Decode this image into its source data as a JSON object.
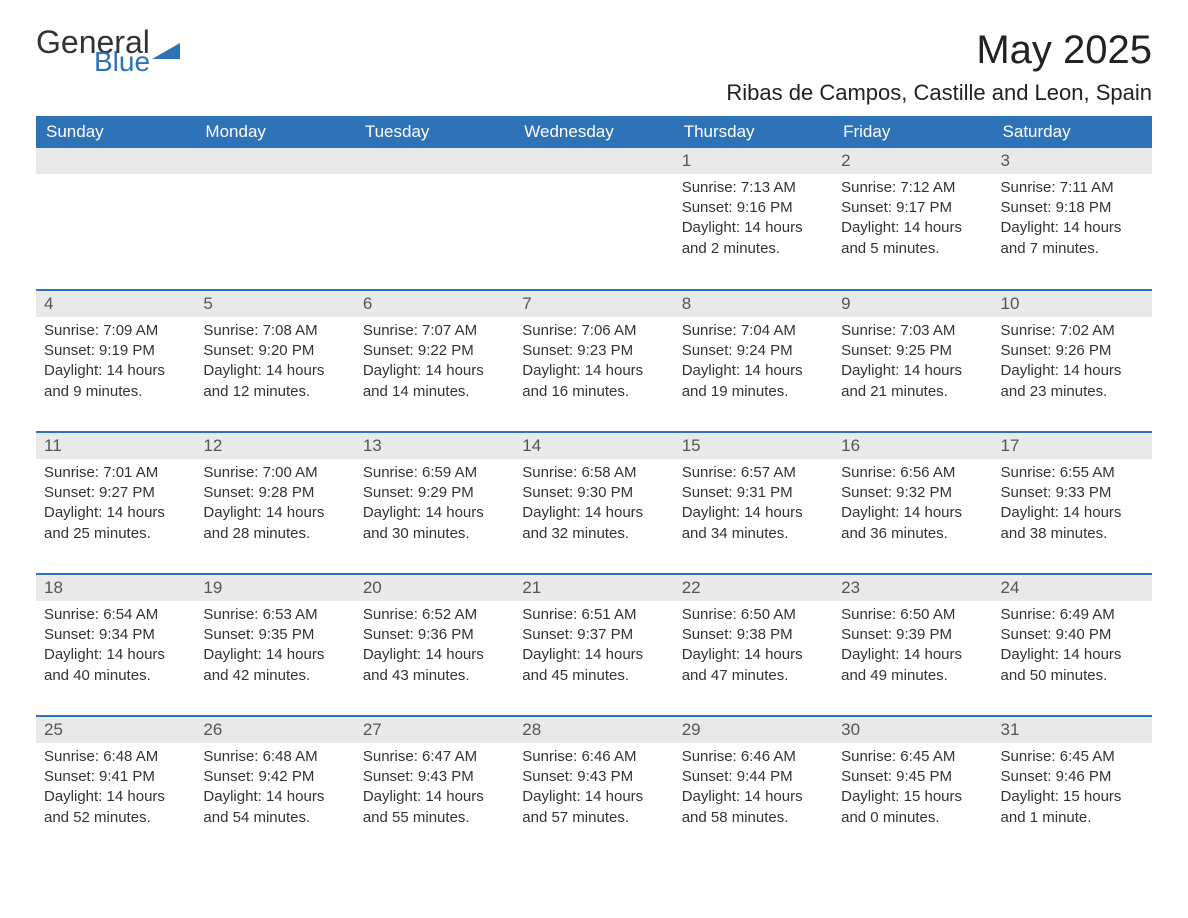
{
  "logo": {
    "general": "General",
    "blue": "Blue"
  },
  "title": "May 2025",
  "subtitle": "Ribas de Campos, Castille and Leon, Spain",
  "colors": {
    "header_bg": "#2e73b8",
    "header_text": "#ffffff",
    "daynum_bg": "#e9e9e9",
    "row_divider": "#2e73b8",
    "text": "#333333",
    "logo_blue": "#2e73b8"
  },
  "weekdays": [
    "Sunday",
    "Monday",
    "Tuesday",
    "Wednesday",
    "Thursday",
    "Friday",
    "Saturday"
  ],
  "weeks": [
    [
      null,
      null,
      null,
      null,
      {
        "day": "1",
        "sunrise": "Sunrise: 7:13 AM",
        "sunset": "Sunset: 9:16 PM",
        "daylight": "Daylight: 14 hours and 2 minutes."
      },
      {
        "day": "2",
        "sunrise": "Sunrise: 7:12 AM",
        "sunset": "Sunset: 9:17 PM",
        "daylight": "Daylight: 14 hours and 5 minutes."
      },
      {
        "day": "3",
        "sunrise": "Sunrise: 7:11 AM",
        "sunset": "Sunset: 9:18 PM",
        "daylight": "Daylight: 14 hours and 7 minutes."
      }
    ],
    [
      {
        "day": "4",
        "sunrise": "Sunrise: 7:09 AM",
        "sunset": "Sunset: 9:19 PM",
        "daylight": "Daylight: 14 hours and 9 minutes."
      },
      {
        "day": "5",
        "sunrise": "Sunrise: 7:08 AM",
        "sunset": "Sunset: 9:20 PM",
        "daylight": "Daylight: 14 hours and 12 minutes."
      },
      {
        "day": "6",
        "sunrise": "Sunrise: 7:07 AM",
        "sunset": "Sunset: 9:22 PM",
        "daylight": "Daylight: 14 hours and 14 minutes."
      },
      {
        "day": "7",
        "sunrise": "Sunrise: 7:06 AM",
        "sunset": "Sunset: 9:23 PM",
        "daylight": "Daylight: 14 hours and 16 minutes."
      },
      {
        "day": "8",
        "sunrise": "Sunrise: 7:04 AM",
        "sunset": "Sunset: 9:24 PM",
        "daylight": "Daylight: 14 hours and 19 minutes."
      },
      {
        "day": "9",
        "sunrise": "Sunrise: 7:03 AM",
        "sunset": "Sunset: 9:25 PM",
        "daylight": "Daylight: 14 hours and 21 minutes."
      },
      {
        "day": "10",
        "sunrise": "Sunrise: 7:02 AM",
        "sunset": "Sunset: 9:26 PM",
        "daylight": "Daylight: 14 hours and 23 minutes."
      }
    ],
    [
      {
        "day": "11",
        "sunrise": "Sunrise: 7:01 AM",
        "sunset": "Sunset: 9:27 PM",
        "daylight": "Daylight: 14 hours and 25 minutes."
      },
      {
        "day": "12",
        "sunrise": "Sunrise: 7:00 AM",
        "sunset": "Sunset: 9:28 PM",
        "daylight": "Daylight: 14 hours and 28 minutes."
      },
      {
        "day": "13",
        "sunrise": "Sunrise: 6:59 AM",
        "sunset": "Sunset: 9:29 PM",
        "daylight": "Daylight: 14 hours and 30 minutes."
      },
      {
        "day": "14",
        "sunrise": "Sunrise: 6:58 AM",
        "sunset": "Sunset: 9:30 PM",
        "daylight": "Daylight: 14 hours and 32 minutes."
      },
      {
        "day": "15",
        "sunrise": "Sunrise: 6:57 AM",
        "sunset": "Sunset: 9:31 PM",
        "daylight": "Daylight: 14 hours and 34 minutes."
      },
      {
        "day": "16",
        "sunrise": "Sunrise: 6:56 AM",
        "sunset": "Sunset: 9:32 PM",
        "daylight": "Daylight: 14 hours and 36 minutes."
      },
      {
        "day": "17",
        "sunrise": "Sunrise: 6:55 AM",
        "sunset": "Sunset: 9:33 PM",
        "daylight": "Daylight: 14 hours and 38 minutes."
      }
    ],
    [
      {
        "day": "18",
        "sunrise": "Sunrise: 6:54 AM",
        "sunset": "Sunset: 9:34 PM",
        "daylight": "Daylight: 14 hours and 40 minutes."
      },
      {
        "day": "19",
        "sunrise": "Sunrise: 6:53 AM",
        "sunset": "Sunset: 9:35 PM",
        "daylight": "Daylight: 14 hours and 42 minutes."
      },
      {
        "day": "20",
        "sunrise": "Sunrise: 6:52 AM",
        "sunset": "Sunset: 9:36 PM",
        "daylight": "Daylight: 14 hours and 43 minutes."
      },
      {
        "day": "21",
        "sunrise": "Sunrise: 6:51 AM",
        "sunset": "Sunset: 9:37 PM",
        "daylight": "Daylight: 14 hours and 45 minutes."
      },
      {
        "day": "22",
        "sunrise": "Sunrise: 6:50 AM",
        "sunset": "Sunset: 9:38 PM",
        "daylight": "Daylight: 14 hours and 47 minutes."
      },
      {
        "day": "23",
        "sunrise": "Sunrise: 6:50 AM",
        "sunset": "Sunset: 9:39 PM",
        "daylight": "Daylight: 14 hours and 49 minutes."
      },
      {
        "day": "24",
        "sunrise": "Sunrise: 6:49 AM",
        "sunset": "Sunset: 9:40 PM",
        "daylight": "Daylight: 14 hours and 50 minutes."
      }
    ],
    [
      {
        "day": "25",
        "sunrise": "Sunrise: 6:48 AM",
        "sunset": "Sunset: 9:41 PM",
        "daylight": "Daylight: 14 hours and 52 minutes."
      },
      {
        "day": "26",
        "sunrise": "Sunrise: 6:48 AM",
        "sunset": "Sunset: 9:42 PM",
        "daylight": "Daylight: 14 hours and 54 minutes."
      },
      {
        "day": "27",
        "sunrise": "Sunrise: 6:47 AM",
        "sunset": "Sunset: 9:43 PM",
        "daylight": "Daylight: 14 hours and 55 minutes."
      },
      {
        "day": "28",
        "sunrise": "Sunrise: 6:46 AM",
        "sunset": "Sunset: 9:43 PM",
        "daylight": "Daylight: 14 hours and 57 minutes."
      },
      {
        "day": "29",
        "sunrise": "Sunrise: 6:46 AM",
        "sunset": "Sunset: 9:44 PM",
        "daylight": "Daylight: 14 hours and 58 minutes."
      },
      {
        "day": "30",
        "sunrise": "Sunrise: 6:45 AM",
        "sunset": "Sunset: 9:45 PM",
        "daylight": "Daylight: 15 hours and 0 minutes."
      },
      {
        "day": "31",
        "sunrise": "Sunrise: 6:45 AM",
        "sunset": "Sunset: 9:46 PM",
        "daylight": "Daylight: 15 hours and 1 minute."
      }
    ]
  ]
}
